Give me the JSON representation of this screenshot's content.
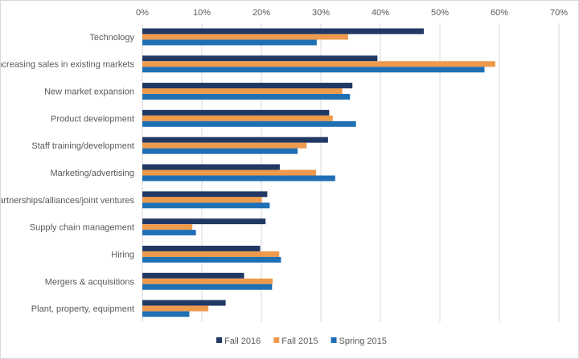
{
  "chart_data": {
    "type": "bar",
    "orientation": "horizontal",
    "title": "",
    "xlabel": "",
    "ylabel": "",
    "xlim": [
      0,
      70
    ],
    "x_ticks": [
      "0%",
      "10%",
      "20%",
      "30%",
      "40%",
      "50%",
      "60%",
      "70%"
    ],
    "x_axis_position": "top",
    "grid": true,
    "legend_position": "bottom",
    "categories": [
      "Technology",
      "Increasing sales in existing markets",
      "New market expansion",
      "Product development",
      "Staff training/development",
      "Marketing/advertising",
      "Partnerships/alliances/joint ventures",
      "Supply chain management",
      "Hiring",
      "Mergers & acquisitions",
      "Plant, property, equipment"
    ],
    "series": [
      {
        "name": "Fall 2016",
        "color": "#203864",
        "values": [
          47.3,
          39.5,
          35.3,
          31.4,
          31.2,
          23.1,
          21.0,
          20.7,
          19.8,
          17.1,
          14.0
        ]
      },
      {
        "name": "Fall 2015",
        "color": "#ed9a4c",
        "values": [
          34.6,
          59.3,
          33.6,
          32.0,
          27.6,
          29.2,
          20.1,
          8.4,
          23.0,
          21.9,
          11.1
        ]
      },
      {
        "name": "Spring 2015",
        "color": "#1f6fb5",
        "values": [
          29.3,
          57.5,
          34.9,
          35.9,
          26.1,
          32.4,
          21.4,
          9.0,
          23.3,
          21.8,
          7.9
        ]
      }
    ]
  }
}
